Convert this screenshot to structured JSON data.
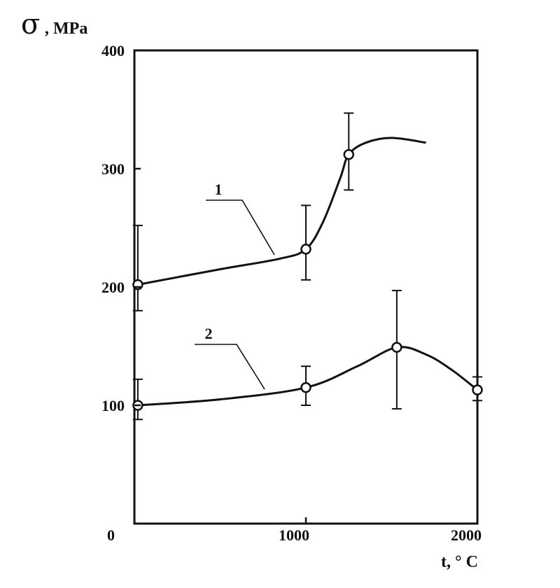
{
  "chart_data": {
    "type": "line",
    "ylabel_symbol": "σ",
    "ylabel": ", MPa",
    "xlabel": "t, ° C",
    "xlim": [
      0,
      2000
    ],
    "ylim": [
      0,
      400
    ],
    "x_tick_labels": [
      "0",
      "1000",
      "2000"
    ],
    "y_ticks": [
      100,
      200,
      300,
      400
    ],
    "y_tick_labels": [
      "100",
      "200",
      "300",
      "400"
    ],
    "grid": false,
    "series": [
      {
        "name": "1",
        "points": [
          {
            "x": 20,
            "y": 202,
            "err_low": 180,
            "err_high": 252
          },
          {
            "x": 1000,
            "y": 232,
            "err_low": 206,
            "err_high": 269
          },
          {
            "x": 1250,
            "y": 312,
            "err_low": 282,
            "err_high": 347
          }
        ],
        "curve": [
          [
            20,
            202
          ],
          [
            500,
            215
          ],
          [
            850,
            224
          ],
          [
            1000,
            232
          ],
          [
            1100,
            255
          ],
          [
            1200,
            292
          ],
          [
            1250,
            312
          ],
          [
            1350,
            322
          ],
          [
            1500,
            326
          ],
          [
            1700,
            322
          ]
        ]
      },
      {
        "name": "2",
        "points": [
          {
            "x": 20,
            "y": 100,
            "err_low": 88,
            "err_high": 122
          },
          {
            "x": 1000,
            "y": 115,
            "err_low": 100,
            "err_high": 133
          },
          {
            "x": 1530,
            "y": 149,
            "err_low": 97,
            "err_high": 197
          },
          {
            "x": 2000,
            "y": 113,
            "err_low": 104,
            "err_high": 124
          }
        ],
        "curve": [
          [
            20,
            100
          ],
          [
            500,
            105
          ],
          [
            1000,
            115
          ],
          [
            1300,
            133
          ],
          [
            1530,
            149
          ],
          [
            1700,
            143
          ],
          [
            1850,
            130
          ],
          [
            2000,
            113
          ]
        ]
      }
    ]
  }
}
